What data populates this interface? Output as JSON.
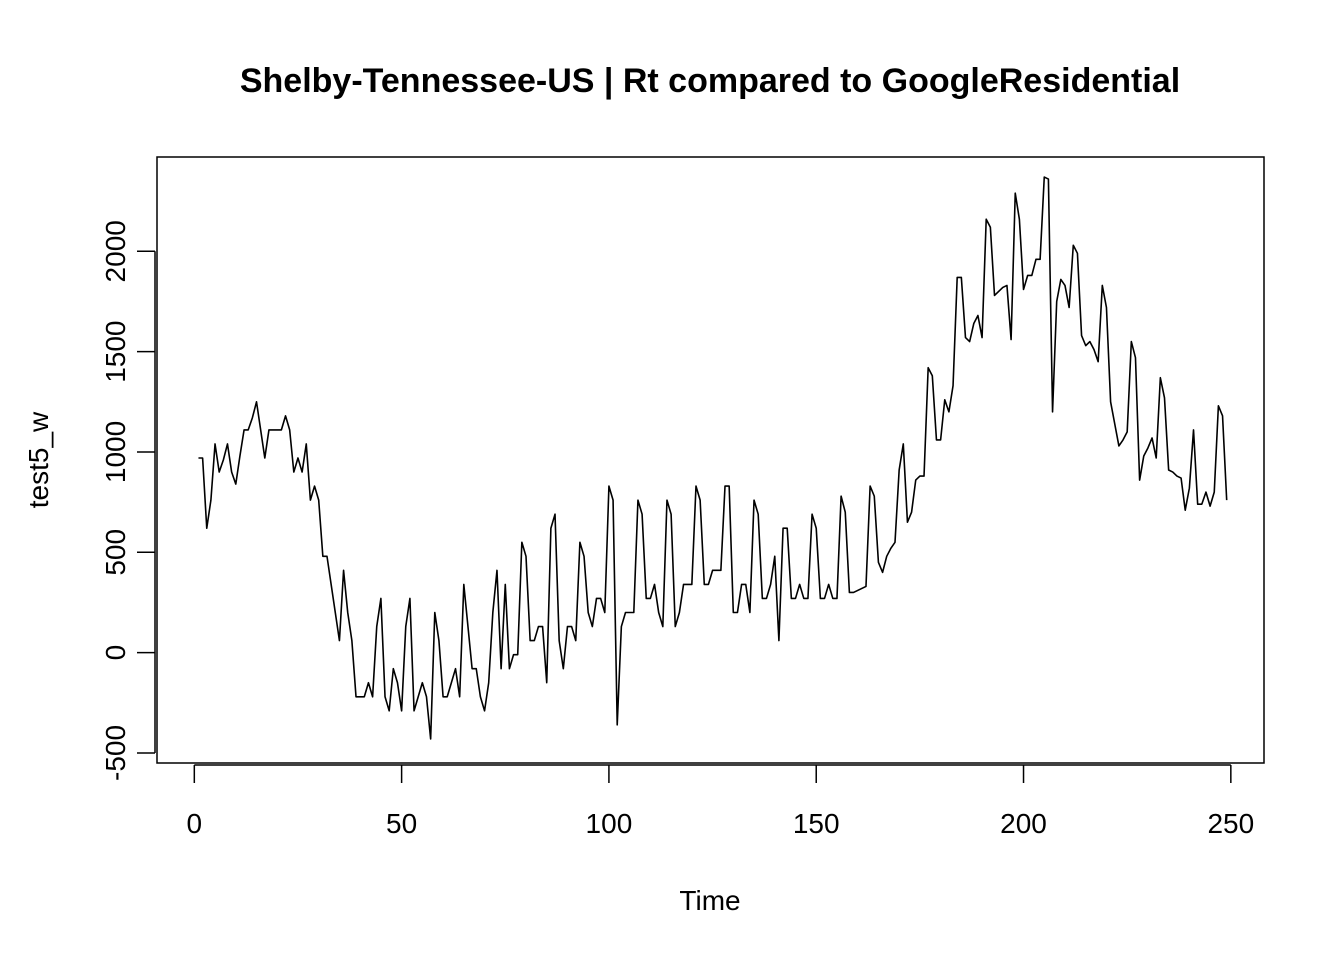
{
  "chart_data": {
    "type": "line",
    "title": "Shelby-Tennessee-US | Rt compared to GoogleResidential",
    "xlabel": "Time",
    "ylabel": "test5_w",
    "xlim": [
      -9,
      258
    ],
    "ylim": [
      -550,
      2470
    ],
    "xticks": [
      0,
      50,
      100,
      150,
      200,
      250
    ],
    "yticks": [
      -500,
      0,
      500,
      1000,
      1500,
      2000
    ],
    "grid": false,
    "legend": "none",
    "color": "#000000",
    "x_start": 1,
    "values": [
      970,
      970,
      620,
      760,
      1040,
      900,
      960,
      1040,
      900,
      840,
      980,
      1110,
      1110,
      1170,
      1250,
      1110,
      970,
      1110,
      1110,
      1110,
      1110,
      1180,
      1110,
      900,
      970,
      900,
      1040,
      760,
      830,
      760,
      480,
      480,
      340,
      200,
      60,
      410,
      200,
      60,
      -220,
      -220,
      -220,
      -150,
      -220,
      130,
      270,
      -220,
      -290,
      -80,
      -150,
      -290,
      130,
      270,
      -290,
      -220,
      -150,
      -220,
      -430,
      200,
      60,
      -220,
      -220,
      -150,
      -80,
      -220,
      340,
      130,
      -80,
      -80,
      -220,
      -290,
      -150,
      200,
      410,
      -80,
      340,
      -80,
      -10,
      -10,
      550,
      480,
      60,
      60,
      130,
      130,
      -150,
      620,
      690,
      60,
      -80,
      130,
      130,
      60,
      550,
      480,
      200,
      130,
      270,
      270,
      200,
      830,
      760,
      -360,
      130,
      200,
      200,
      200,
      760,
      690,
      270,
      270,
      340,
      200,
      130,
      760,
      690,
      130,
      200,
      340,
      340,
      340,
      830,
      760,
      340,
      340,
      410,
      410,
      410,
      830,
      830,
      200,
      200,
      340,
      340,
      200,
      760,
      690,
      270,
      270,
      340,
      480,
      60,
      620,
      620,
      270,
      270,
      340,
      270,
      270,
      690,
      620,
      270,
      270,
      340,
      270,
      270,
      780,
      700,
      300,
      300,
      310,
      320,
      330,
      830,
      780,
      450,
      400,
      480,
      520,
      550,
      910,
      1040,
      650,
      700,
      860,
      880,
      880,
      1420,
      1380,
      1060,
      1060,
      1260,
      1200,
      1330,
      1870,
      1870,
      1570,
      1550,
      1640,
      1680,
      1570,
      2160,
      2120,
      1780,
      1800,
      1820,
      1830,
      1560,
      2290,
      2160,
      1810,
      1880,
      1880,
      1960,
      1960,
      2370,
      2360,
      1200,
      1750,
      1860,
      1830,
      1720,
      2030,
      1990,
      1580,
      1530,
      1550,
      1510,
      1450,
      1830,
      1720,
      1250,
      1140,
      1030,
      1060,
      1100,
      1550,
      1470,
      860,
      980,
      1020,
      1070,
      970,
      1370,
      1270,
      910,
      900,
      880,
      870,
      710,
      820,
      1110,
      740,
      740,
      800,
      730,
      800,
      1230,
      1180,
      760
    ]
  }
}
